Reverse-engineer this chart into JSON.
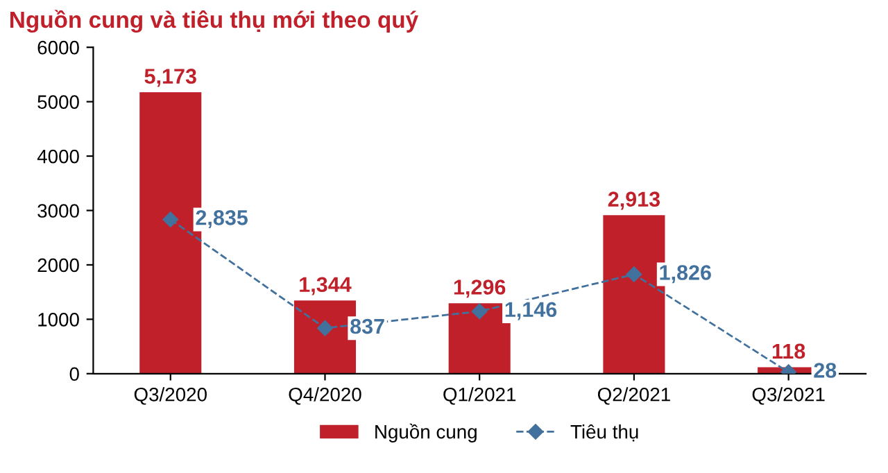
{
  "chart_data": {
    "type": "bar",
    "title": "Nguồn cung và tiêu thụ mới theo quý",
    "categories": [
      "Q3/2020",
      "Q4/2020",
      "Q1/2021",
      "Q2/2021",
      "Q3/2021"
    ],
    "series": [
      {
        "name": "Nguồn cung",
        "color": "#c0202a",
        "values": [
          5173,
          1344,
          1296,
          2913,
          118
        ],
        "value_labels": [
          "5,173",
          "1,344",
          "1,296",
          "2,913",
          "118"
        ]
      },
      {
        "name": "Tiêu thụ",
        "type": "line",
        "color": "#41719c",
        "values": [
          2835,
          837,
          1146,
          1826,
          28
        ],
        "value_labels": [
          "2,835",
          "837",
          "1,146",
          "1,826",
          "28"
        ],
        "marker": "diamond",
        "line_style": "dashed"
      }
    ],
    "ylim": [
      0,
      6000
    ],
    "yticks": [
      0,
      1000,
      2000,
      3000,
      4000,
      5000,
      6000
    ],
    "grid": false,
    "legend": "bottom"
  }
}
